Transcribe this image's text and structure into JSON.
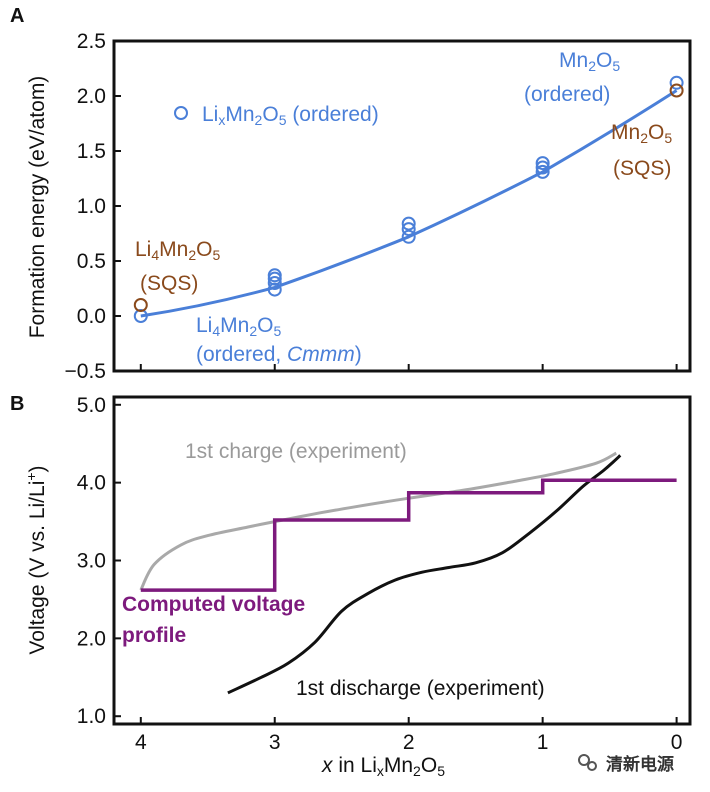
{
  "chart_data": [
    {
      "panel": "A",
      "type": "scatter",
      "ylabel": "Formation energy (eV/atom)",
      "ylim": [
        -0.5,
        2.5
      ],
      "xlim": [
        4.2,
        -0.1
      ],
      "yticks": [
        "2.5",
        "2.0",
        "1.5",
        "1.0",
        "0.5",
        "0.0",
        "−0.5"
      ],
      "ytick_values": [
        2.5,
        2.0,
        1.5,
        1.0,
        0.5,
        0.0,
        -0.5
      ],
      "series": [
        {
          "name": "LixMn2O5 (ordered)",
          "marker": "open-circle",
          "color": "#4a7fd8",
          "x": [
            4,
            3,
            3,
            3,
            3,
            2,
            2,
            2,
            1,
            1,
            1,
            0
          ],
          "y": [
            0.0,
            0.24,
            0.3,
            0.34,
            0.37,
            0.72,
            0.79,
            0.84,
            1.31,
            1.35,
            1.39,
            2.12
          ]
        },
        {
          "name": "SQS",
          "marker": "open-circle",
          "color": "#8a4a1c",
          "x": [
            4,
            0
          ],
          "y": [
            0.1,
            2.05
          ]
        },
        {
          "name": "convex hull fit",
          "type": "line",
          "color": "#4a7fd8",
          "x": [
            4,
            3,
            2,
            1,
            0
          ],
          "y": [
            0.0,
            0.26,
            0.72,
            1.31,
            2.05
          ]
        }
      ],
      "legend": {
        "prefix": "Li",
        "sub_x": "x",
        "mid": "Mn",
        "sub_2": "2",
        "o": "O",
        "sub_5": "5",
        "suffix": " (ordered)"
      },
      "annotations": {
        "li4_sqs": {
          "main": "Li",
          "sub4": "4",
          "mn": "Mn",
          "sub2": "2",
          "o": "O",
          "sub5": "5",
          "paren": "(SQS)"
        },
        "li4_ordered": {
          "main": "Li",
          "sub4": "4",
          "mn": "Mn",
          "sub2": "2",
          "o": "O",
          "sub5": "5",
          "paren_open": "(ordered, ",
          "italic": "Cmmm",
          "paren_close": ")"
        },
        "mn_ordered": {
          "mn": "Mn",
          "sub2": "2",
          "o": "O",
          "sub5": "5",
          "paren": "(ordered)"
        },
        "mn_sqs": {
          "mn": "Mn",
          "sub2": "2",
          "o": "O",
          "sub5": "5",
          "paren": "(SQS)"
        }
      }
    },
    {
      "panel": "B",
      "type": "line",
      "ylabel_main": "Voltage (V vs. Li/Li",
      "ylabel_sup": "+",
      "ylabel_close": ")",
      "ylim": [
        0.9,
        5.1
      ],
      "xlim": [
        4.2,
        -0.1
      ],
      "yticks": [
        "5.0",
        "4.0",
        "3.0",
        "2.0",
        "1.0"
      ],
      "ytick_values": [
        5.0,
        4.0,
        3.0,
        2.0,
        1.0
      ],
      "xticks": [
        "4",
        "3",
        "2",
        "1",
        "0"
      ],
      "xtick_values": [
        4,
        3,
        2,
        1,
        0
      ],
      "xlabel": {
        "var": "x",
        "text": " in Li",
        "sub_x": "x",
        "mn": "Mn",
        "sub2": "2",
        "o": "O",
        "sub5": "5"
      },
      "series": [
        {
          "name": "1st charge (experiment)",
          "color": "#a9a9a9",
          "x": [
            4.0,
            3.9,
            3.7,
            3.5,
            3.2,
            3.0,
            2.7,
            2.4,
            2.0,
            1.6,
            1.2,
            0.9,
            0.6,
            0.45
          ],
          "y": [
            2.62,
            2.95,
            3.2,
            3.32,
            3.43,
            3.5,
            3.6,
            3.69,
            3.8,
            3.9,
            4.02,
            4.12,
            4.25,
            4.38
          ]
        },
        {
          "name": "1st discharge (experiment)",
          "color": "#111111",
          "x": [
            3.35,
            3.1,
            2.9,
            2.7,
            2.5,
            2.3,
            2.1,
            1.9,
            1.7,
            1.5,
            1.3,
            1.1,
            0.9,
            0.7,
            0.55,
            0.47,
            0.42
          ],
          "y": [
            1.3,
            1.5,
            1.68,
            1.95,
            2.35,
            2.58,
            2.75,
            2.85,
            2.91,
            2.97,
            3.1,
            3.35,
            3.63,
            3.95,
            4.15,
            4.27,
            4.35
          ]
        },
        {
          "name": "Computed voltage profile",
          "type": "step",
          "color": "#7d1a7d",
          "x": [
            4,
            3,
            3,
            2,
            2,
            1,
            1,
            0
          ],
          "y": [
            2.62,
            2.62,
            3.52,
            3.52,
            3.87,
            3.87,
            4.03,
            4.03
          ]
        }
      ],
      "labels": {
        "charge": "1st charge (experiment)",
        "discharge": "1st discharge (experiment)",
        "computed_line1": "Computed voltage",
        "computed_line2": "profile"
      }
    }
  ],
  "panel_letters": {
    "a": "A",
    "b": "B"
  },
  "watermark": {
    "text": "清新电源"
  }
}
